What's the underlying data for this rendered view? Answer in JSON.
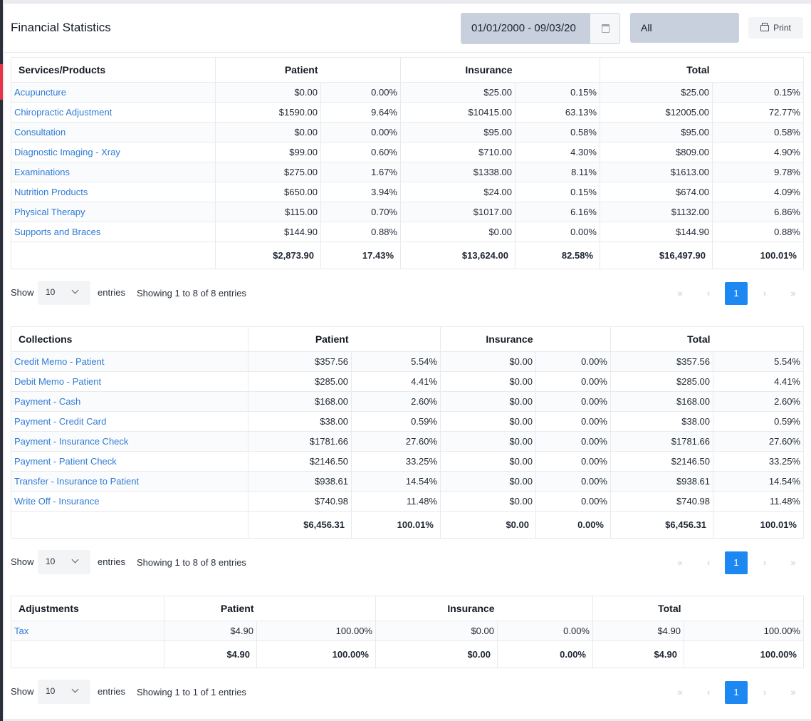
{
  "header": {
    "title": "Financial Statistics",
    "date_range": "01/01/2000 - 09/03/20",
    "filter_value": "All",
    "print_label": "Print"
  },
  "pager_icons": {
    "first": "«",
    "prev": "‹",
    "next": "›",
    "last": "»"
  },
  "services": {
    "headers": {
      "name": "Services/Products",
      "patient": "Patient",
      "insurance": "Insurance",
      "total": "Total"
    },
    "rows": [
      [
        "Acupuncture",
        "$0.00",
        "0.00%",
        "$25.00",
        "0.15%",
        "$25.00",
        "0.15%"
      ],
      [
        "Chiropractic Adjustment",
        "$1590.00",
        "9.64%",
        "$10415.00",
        "63.13%",
        "$12005.00",
        "72.77%"
      ],
      [
        "Consultation",
        "$0.00",
        "0.00%",
        "$95.00",
        "0.58%",
        "$95.00",
        "0.58%"
      ],
      [
        "Diagnostic Imaging - Xray",
        "$99.00",
        "0.60%",
        "$710.00",
        "4.30%",
        "$809.00",
        "4.90%"
      ],
      [
        "Examinations",
        "$275.00",
        "1.67%",
        "$1338.00",
        "8.11%",
        "$1613.00",
        "9.78%"
      ],
      [
        "Nutrition Products",
        "$650.00",
        "3.94%",
        "$24.00",
        "0.15%",
        "$674.00",
        "4.09%"
      ],
      [
        "Physical Therapy",
        "$115.00",
        "0.70%",
        "$1017.00",
        "6.16%",
        "$1132.00",
        "6.86%"
      ],
      [
        "Supports and Braces",
        "$144.90",
        "0.88%",
        "$0.00",
        "0.00%",
        "$144.90",
        "0.88%"
      ]
    ],
    "totals": [
      "",
      "$2,873.90",
      "17.43%",
      "$13,624.00",
      "82.58%",
      "$16,497.90",
      "100.01%"
    ],
    "pager": {
      "show": "Show",
      "length": "10",
      "entries": "entries",
      "info": "Showing 1 to 8 of 8 entries",
      "page": "1"
    }
  },
  "collections": {
    "headers": {
      "name": "Collections",
      "patient": "Patient",
      "insurance": "Insurance",
      "total": "Total"
    },
    "rows": [
      [
        "Credit Memo - Patient",
        "$357.56",
        "5.54%",
        "$0.00",
        "0.00%",
        "$357.56",
        "5.54%"
      ],
      [
        "Debit Memo - Patient",
        "$285.00",
        "4.41%",
        "$0.00",
        "0.00%",
        "$285.00",
        "4.41%"
      ],
      [
        "Payment - Cash",
        "$168.00",
        "2.60%",
        "$0.00",
        "0.00%",
        "$168.00",
        "2.60%"
      ],
      [
        "Payment - Credit Card",
        "$38.00",
        "0.59%",
        "$0.00",
        "0.00%",
        "$38.00",
        "0.59%"
      ],
      [
        "Payment - Insurance Check",
        "$1781.66",
        "27.60%",
        "$0.00",
        "0.00%",
        "$1781.66",
        "27.60%"
      ],
      [
        "Payment - Patient Check",
        "$2146.50",
        "33.25%",
        "$0.00",
        "0.00%",
        "$2146.50",
        "33.25%"
      ],
      [
        "Transfer - Insurance to Patient",
        "$938.61",
        "14.54%",
        "$0.00",
        "0.00%",
        "$938.61",
        "14.54%"
      ],
      [
        "Write Off - Insurance",
        "$740.98",
        "11.48%",
        "$0.00",
        "0.00%",
        "$740.98",
        "11.48%"
      ]
    ],
    "totals": [
      "",
      "$6,456.31",
      "100.01%",
      "$0.00",
      "0.00%",
      "$6,456.31",
      "100.01%"
    ],
    "pager": {
      "show": "Show",
      "length": "10",
      "entries": "entries",
      "info": "Showing 1 to 8 of 8 entries",
      "page": "1"
    }
  },
  "adjustments": {
    "headers": {
      "name": "Adjustments",
      "patient": "Patient",
      "insurance": "Insurance",
      "total": "Total"
    },
    "rows": [
      [
        "Tax",
        "$4.90",
        "100.00%",
        "$0.00",
        "0.00%",
        "$4.90",
        "100.00%"
      ]
    ],
    "totals": [
      "",
      "$4.90",
      "100.00%",
      "$0.00",
      "0.00%",
      "$4.90",
      "100.00%"
    ],
    "pager": {
      "show": "Show",
      "length": "10",
      "entries": "entries",
      "info": "Showing 1 to 1 of 1 entries",
      "page": "1"
    }
  }
}
